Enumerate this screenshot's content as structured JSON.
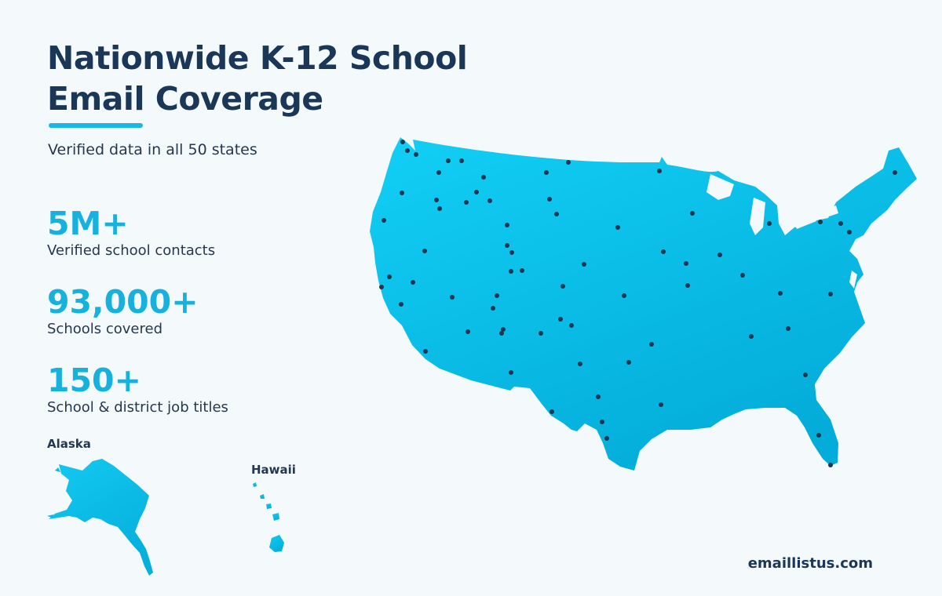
{
  "title": {
    "line1": "Nationwide K-12 School",
    "line2": "Email Coverage"
  },
  "subtitle": "Verified data in all 50 states",
  "stats": [
    {
      "value": "5M+",
      "label": "Verified school contacts"
    },
    {
      "value": "93,000+",
      "label": "Schools covered"
    },
    {
      "value": "150+",
      "label": "School & district job titles"
    }
  ],
  "insets": {
    "alaska_label": "Alaska",
    "hawaii_label": "Hawaii"
  },
  "footer": "emaillistus.com",
  "colors": {
    "map_fill": "#0fc4ee",
    "map_fill_dark": "#04a9d9",
    "marker": "#1d3652",
    "title": "#1b3757",
    "accent": "#19b7e3"
  }
}
